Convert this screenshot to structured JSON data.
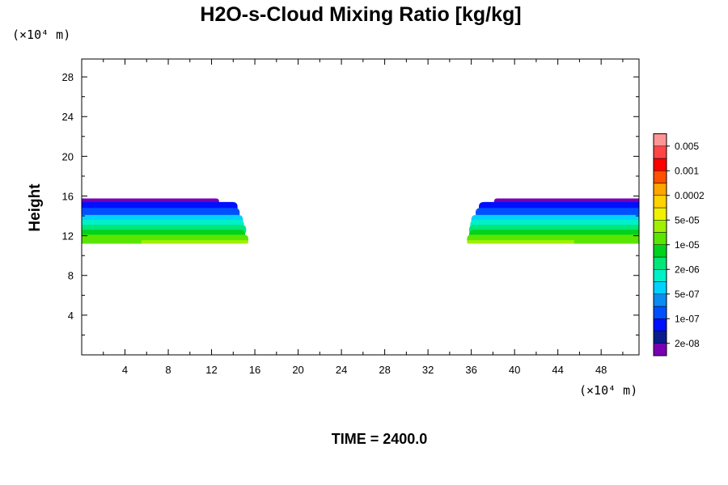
{
  "chart_data": {
    "type": "contour",
    "title": "H2O-s-Cloud Mixing Ratio [kg/kg]",
    "ylabel": "Height",
    "x_unit": "(×10⁴ m)",
    "y_unit": "(×10⁴ m)",
    "xlim": [
      0,
      51.5
    ],
    "ylim": [
      0,
      29.8
    ],
    "x_ticks": [
      4,
      8,
      12,
      16,
      20,
      24,
      28,
      32,
      36,
      40,
      44,
      48
    ],
    "y_ticks": [
      4,
      8,
      12,
      16,
      20,
      24,
      28
    ],
    "footer": "TIME = 2400.0",
    "colorbar": {
      "colors": [
        "#7a00b4",
        "#0a1c8c",
        "#0010ff",
        "#0050ff",
        "#0a8cf0",
        "#00d2ff",
        "#00f0c8",
        "#00e678",
        "#00d21e",
        "#5ae600",
        "#a0f000",
        "#f0f000",
        "#ffd200",
        "#ffa500",
        "#ff5000",
        "#ff0000",
        "#ff4646",
        "#ff9696"
      ],
      "labels": [
        "2e-08",
        "1e-07",
        "5e-07",
        "2e-06",
        "1e-05",
        "5e-05",
        "0.0002",
        "0.001",
        "0.005"
      ]
    },
    "regions": [
      {
        "name": "cloud band (left)",
        "layers": [
          {
            "color": "#7a00b4",
            "bottom": 15.1,
            "top": 15.75,
            "x_start": 0,
            "x_end": 12.7
          },
          {
            "color": "#0010ff",
            "bottom": 14.2,
            "top": 15.4,
            "x_start": 0,
            "x_end": 14.4
          },
          {
            "color": "#0050ff",
            "bottom": 13.8,
            "top": 14.8,
            "x_start": 0,
            "x_end": 14.6
          },
          {
            "color": "#00d2ff",
            "bottom": 13.1,
            "top": 14.1,
            "x_start": 0,
            "x_end": 14.9
          },
          {
            "color": "#00f0c8",
            "bottom": 12.6,
            "top": 13.6,
            "x_start": 0,
            "x_end": 15.0
          },
          {
            "color": "#00e678",
            "bottom": 12.1,
            "top": 13.1,
            "x_start": 0,
            "x_end": 15.2
          },
          {
            "color": "#00d21e",
            "bottom": 11.6,
            "top": 12.6,
            "x_start": 0,
            "x_end": 15.1
          },
          {
            "color": "#5ae600",
            "bottom": 11.2,
            "top": 12.1,
            "x_start": 0,
            "x_end": 15.4
          },
          {
            "color": "#a0f000",
            "bottom": 11.2,
            "top": 11.55,
            "x_start": 5.5,
            "x_end": 15.4
          }
        ]
      },
      {
        "name": "cloud band (right)",
        "layers": [
          {
            "color": "#7a00b4",
            "bottom": 15.1,
            "top": 15.75,
            "x_start": 38.1,
            "x_end": 51.5
          },
          {
            "color": "#0010ff",
            "bottom": 14.2,
            "top": 15.4,
            "x_start": 36.7,
            "x_end": 51.5
          },
          {
            "color": "#0050ff",
            "bottom": 13.8,
            "top": 14.8,
            "x_start": 36.4,
            "x_end": 51.5
          },
          {
            "color": "#00d2ff",
            "bottom": 13.1,
            "top": 14.1,
            "x_start": 36.0,
            "x_end": 51.5
          },
          {
            "color": "#00f0c8",
            "bottom": 12.6,
            "top": 13.6,
            "x_start": 35.9,
            "x_end": 51.5
          },
          {
            "color": "#00e678",
            "bottom": 12.1,
            "top": 13.1,
            "x_start": 35.8,
            "x_end": 51.5
          },
          {
            "color": "#00d21e",
            "bottom": 11.6,
            "top": 12.6,
            "x_start": 35.8,
            "x_end": 51.5
          },
          {
            "color": "#5ae600",
            "bottom": 11.2,
            "top": 12.1,
            "x_start": 35.6,
            "x_end": 51.5
          },
          {
            "color": "#a0f000",
            "bottom": 11.2,
            "top": 11.55,
            "x_start": 35.6,
            "x_end": 45.5
          }
        ]
      }
    ]
  }
}
